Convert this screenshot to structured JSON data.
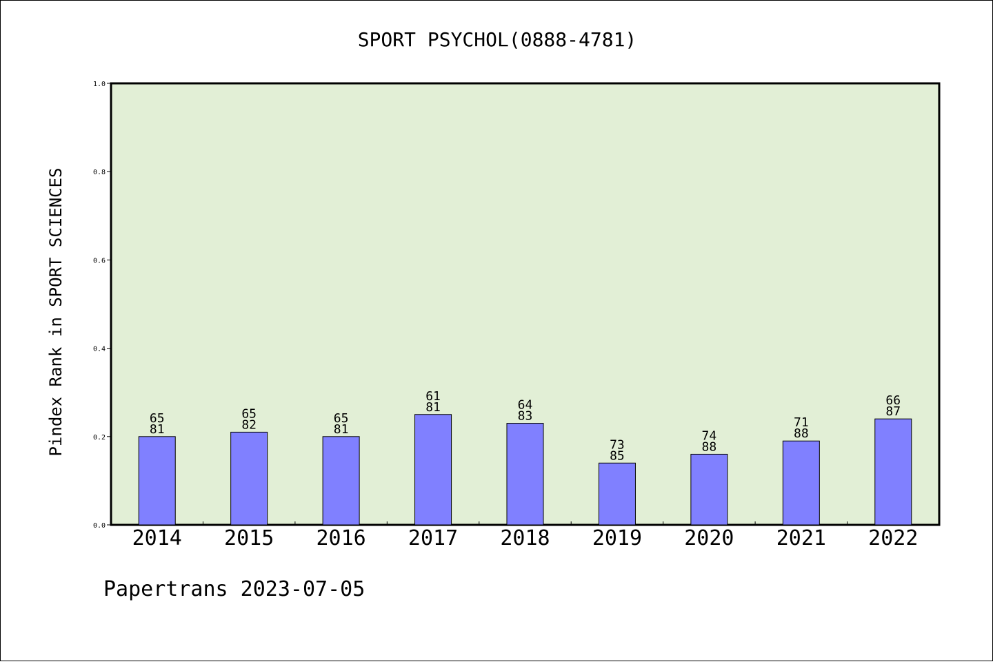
{
  "chart_data": {
    "type": "bar",
    "title": "SPORT PSYCHOL(0888-4781)",
    "xlabel": "",
    "ylabel": "Pindex Rank in SPORT SCIENCES",
    "ylim": [
      0,
      1.0
    ],
    "yticks": [
      "0.0",
      "0.2",
      "0.4",
      "0.6",
      "0.8",
      "1.0"
    ],
    "categories": [
      "2014",
      "2015",
      "2016",
      "2017",
      "2018",
      "2019",
      "2020",
      "2021",
      "2022"
    ],
    "values": [
      0.2,
      0.21,
      0.2,
      0.25,
      0.23,
      0.14,
      0.16,
      0.19,
      0.24
    ],
    "rank_labels": [
      "65",
      "65",
      "65",
      "61",
      "64",
      "73",
      "74",
      "71",
      "66"
    ],
    "total_labels": [
      "81",
      "82",
      "81",
      "81",
      "83",
      "85",
      "88",
      "88",
      "87"
    ],
    "grid": false,
    "colors": {
      "plot_background": "#e2efd6",
      "bar_fill": "#8080ff",
      "bar_stroke": "#000000"
    }
  },
  "footer": "Papertrans 2023-07-05"
}
